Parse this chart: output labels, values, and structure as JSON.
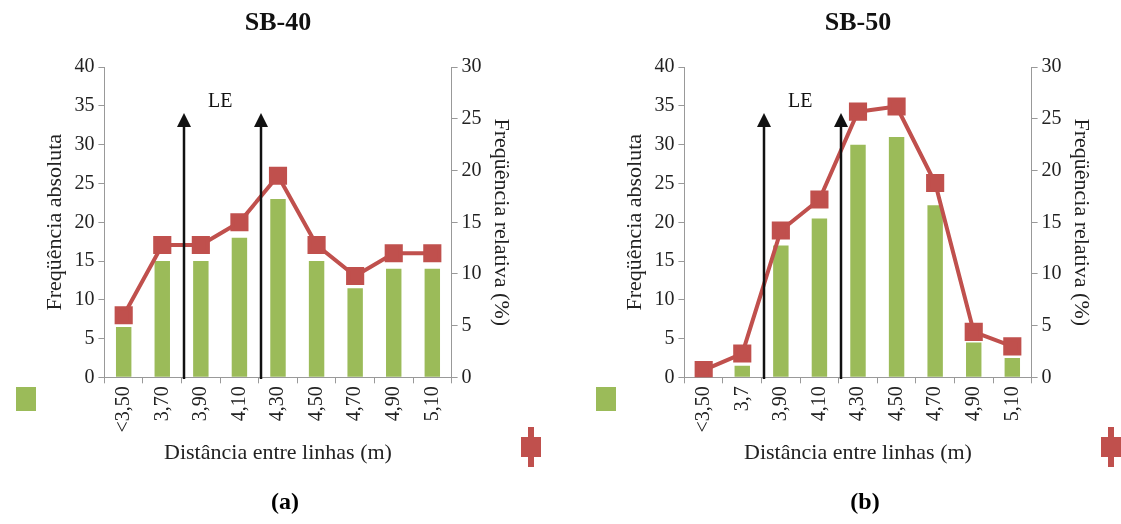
{
  "chart_data": [
    {
      "type": "bar",
      "title": "SB-40",
      "xlabel": "Distância entre linhas (m)",
      "ylabel": "Freqüência absoluta",
      "y2label": "Freqüência relativa (%)",
      "categories": [
        "<3,50",
        "3,70",
        "3,90",
        "4,10",
        "4,30",
        "4,50",
        "4,70",
        "4,90",
        "5,10"
      ],
      "series": [
        {
          "color": "#9bbb59",
          "values": [
            6.5,
            15,
            15,
            18,
            23,
            15,
            11.5,
            14,
            14
          ]
        },
        {
          "type": "line",
          "axis": "y2",
          "color": "#c0504d",
          "values": [
            6,
            12.8,
            12.8,
            15,
            19.5,
            12.8,
            9.8,
            12,
            12
          ]
        }
      ],
      "ylim": [
        0,
        40
      ],
      "yticks": [
        0,
        5,
        10,
        15,
        20,
        25,
        30,
        35,
        40
      ],
      "y2lim": [
        0,
        30
      ],
      "y2ticks": [
        0,
        5,
        10,
        15,
        20,
        25,
        30
      ],
      "marker": "square",
      "legend": false,
      "grid": false,
      "annotations": [
        "LE",
        "(a)"
      ]
    },
    {
      "type": "bar",
      "title": "SB-50",
      "xlabel": "Distância entre linhas (m)",
      "ylabel": "Freqüência absoluta",
      "y2label": "Freqüência relativa (%)",
      "categories": [
        "<3,50",
        "3,7",
        "3,90",
        "4,10",
        "4,30",
        "4,50",
        "4,70",
        "4,90",
        "5,10"
      ],
      "series": [
        {
          "color": "#9bbb59",
          "values": [
            0,
            1.5,
            17,
            20.5,
            30,
            31,
            22.2,
            4.5,
            2.5
          ]
        },
        {
          "type": "line",
          "axis": "y2",
          "color": "#c0504d",
          "values": [
            0.7,
            2.3,
            14.2,
            17.2,
            25.7,
            26.2,
            18.8,
            4.4,
            3
          ]
        }
      ],
      "ylim": [
        0,
        40
      ],
      "yticks": [
        0,
        5,
        10,
        15,
        20,
        25,
        30,
        35,
        40
      ],
      "y2lim": [
        0,
        30
      ],
      "y2ticks": [
        0,
        5,
        10,
        15,
        20,
        25,
        30
      ],
      "marker": "square",
      "legend": false,
      "grid": false,
      "annotations": [
        "LE",
        "(b)"
      ]
    }
  ]
}
